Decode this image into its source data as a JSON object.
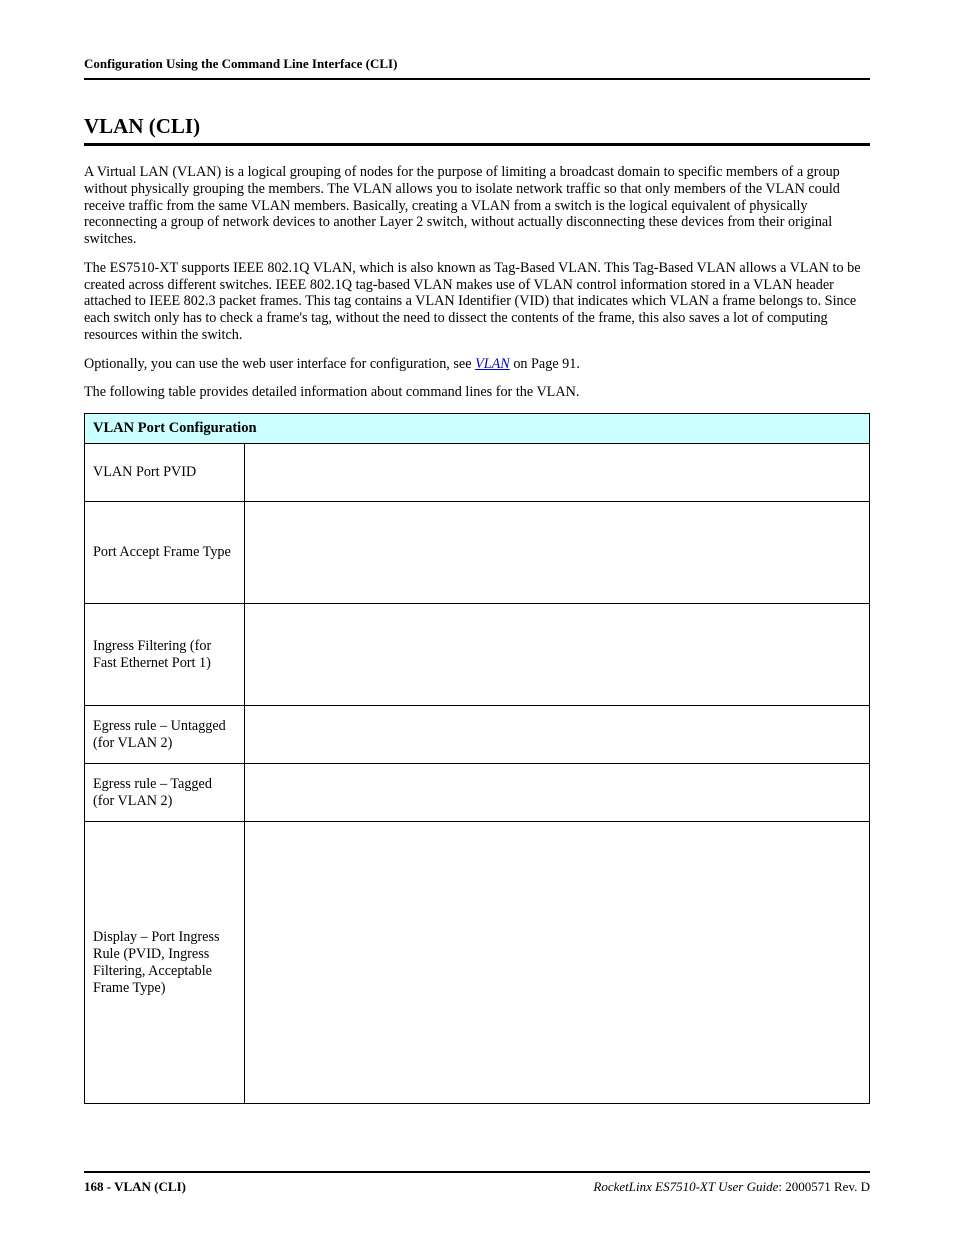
{
  "header": {
    "running": "Configuration Using the Command Line Interface (CLI)"
  },
  "section": {
    "title": "VLAN (CLI)"
  },
  "paragraphs": {
    "p1": "A Virtual LAN (VLAN) is a logical grouping of nodes for the purpose of limiting a broadcast domain to specific members of a group without physically grouping the members. The VLAN allows you to isolate network traffic so that only members of the VLAN could receive traffic from the same VLAN members. Basically, creating a VLAN from a switch is the logical equivalent of physically reconnecting a group of network devices to another Layer 2 switch, without actually disconnecting these devices from their original switches.",
    "p2": "The ES7510-XT supports IEEE 802.1Q VLAN, which is also known as Tag-Based VLAN. This Tag-Based VLAN allows a VLAN to be created across different switches. IEEE 802.1Q tag-based VLAN makes use of VLAN control information stored in a VLAN header attached to IEEE 802.3 packet frames. This tag contains a VLAN Identifier (VID) that indicates which VLAN a frame belongs to. Since each switch only has to check a frame's tag, without the need to dissect the contents of the frame, this also saves a lot of computing resources within the switch.",
    "p3_pre": "Optionally, you can use the web user interface for configuration, see ",
    "p3_link": "VLAN",
    "p3_post": " on Page 91.",
    "p4": "The following table provides detailed information about command lines for the VLAN."
  },
  "table": {
    "header": "VLAN Port Configuration",
    "rows": {
      "r1": "VLAN Port PVID",
      "r2": "Port Accept Frame Type",
      "r3": "Ingress Filtering (for Fast Ethernet Port 1)",
      "r4": "Egress rule – Untagged (for VLAN 2)",
      "r5": "Egress rule – Tagged (for VLAN 2)",
      "r6": "Display – Port Ingress Rule (PVID, Ingress Filtering, Acceptable Frame Type)"
    },
    "row_heights": {
      "r1": 58,
      "r2": 102,
      "r3": 102,
      "r4": 58,
      "r5": 58,
      "r6": 282
    },
    "colors": {
      "header_bg": "#ccffff",
      "border": "#000000"
    }
  },
  "footer": {
    "page_num": "168",
    "page_label": " - VLAN (CLI)",
    "guide": "RocketLinx ES7510-XT  User Guide",
    "rev": ": 2000571 Rev. D"
  }
}
